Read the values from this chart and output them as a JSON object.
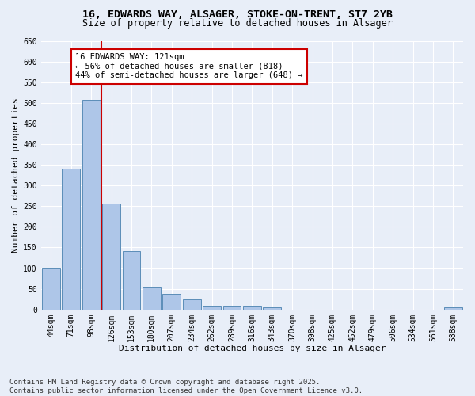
{
  "title_line1": "16, EDWARDS WAY, ALSAGER, STOKE-ON-TRENT, ST7 2YB",
  "title_line2": "Size of property relative to detached houses in Alsager",
  "xlabel": "Distribution of detached houses by size in Alsager",
  "ylabel": "Number of detached properties",
  "categories": [
    "44sqm",
    "71sqm",
    "98sqm",
    "126sqm",
    "153sqm",
    "180sqm",
    "207sqm",
    "234sqm",
    "262sqm",
    "289sqm",
    "316sqm",
    "343sqm",
    "370sqm",
    "398sqm",
    "425sqm",
    "452sqm",
    "479sqm",
    "506sqm",
    "534sqm",
    "561sqm",
    "588sqm"
  ],
  "values": [
    100,
    340,
    507,
    257,
    141,
    54,
    37,
    24,
    10,
    10,
    10,
    6,
    0,
    0,
    0,
    0,
    0,
    0,
    0,
    0,
    5
  ],
  "bar_color": "#aec6e8",
  "bar_edge_color": "#5b8db8",
  "background_color": "#e8eef8",
  "grid_color": "#ffffff",
  "vline_color": "#cc0000",
  "annotation_text": "16 EDWARDS WAY: 121sqm\n← 56% of detached houses are smaller (818)\n44% of semi-detached houses are larger (648) →",
  "annotation_box_color": "#ffffff",
  "annotation_box_edge_color": "#cc0000",
  "annotation_fontsize": 7.5,
  "ylim": [
    0,
    650
  ],
  "yticks": [
    0,
    50,
    100,
    150,
    200,
    250,
    300,
    350,
    400,
    450,
    500,
    550,
    600,
    650
  ],
  "footer": "Contains HM Land Registry data © Crown copyright and database right 2025.\nContains public sector information licensed under the Open Government Licence v3.0.",
  "title_fontsize": 9.5,
  "subtitle_fontsize": 8.5,
  "axis_label_fontsize": 8,
  "tick_fontsize": 7,
  "footer_fontsize": 6.5
}
